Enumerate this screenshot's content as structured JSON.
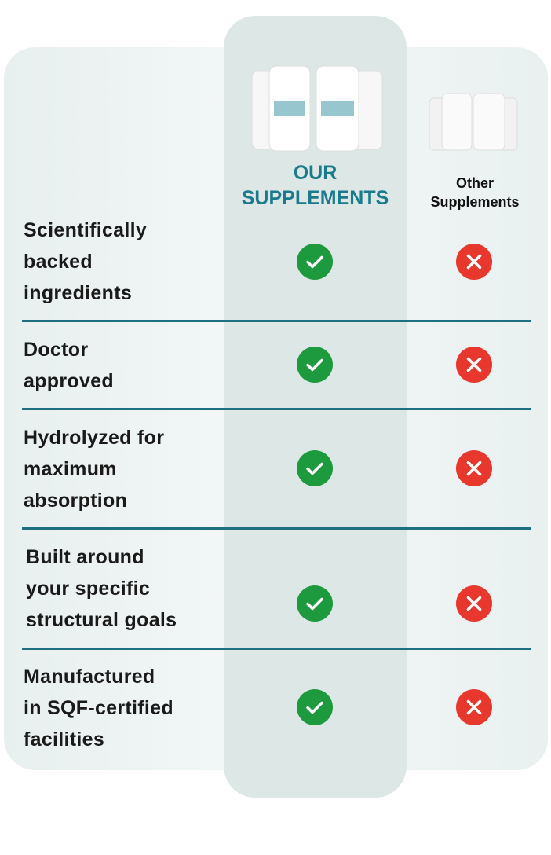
{
  "header": {
    "ours": [
      "OUR",
      "SUPPLEMENTS"
    ],
    "others": [
      "Other",
      "Supplements"
    ]
  },
  "rows": [
    {
      "feature": [
        "Scientifically",
        "backed",
        "ingredients"
      ]
    },
    {
      "feature": [
        "Doctor",
        "approved"
      ]
    },
    {
      "feature": [
        "Hydrolyzed for",
        "maximum",
        "absorption"
      ]
    },
    {
      "feature": [
        "Built around",
        "your specific",
        "structural goals"
      ]
    },
    {
      "feature": [
        "Manufactured",
        "in SQF-certified",
        "facilities"
      ]
    }
  ]
}
